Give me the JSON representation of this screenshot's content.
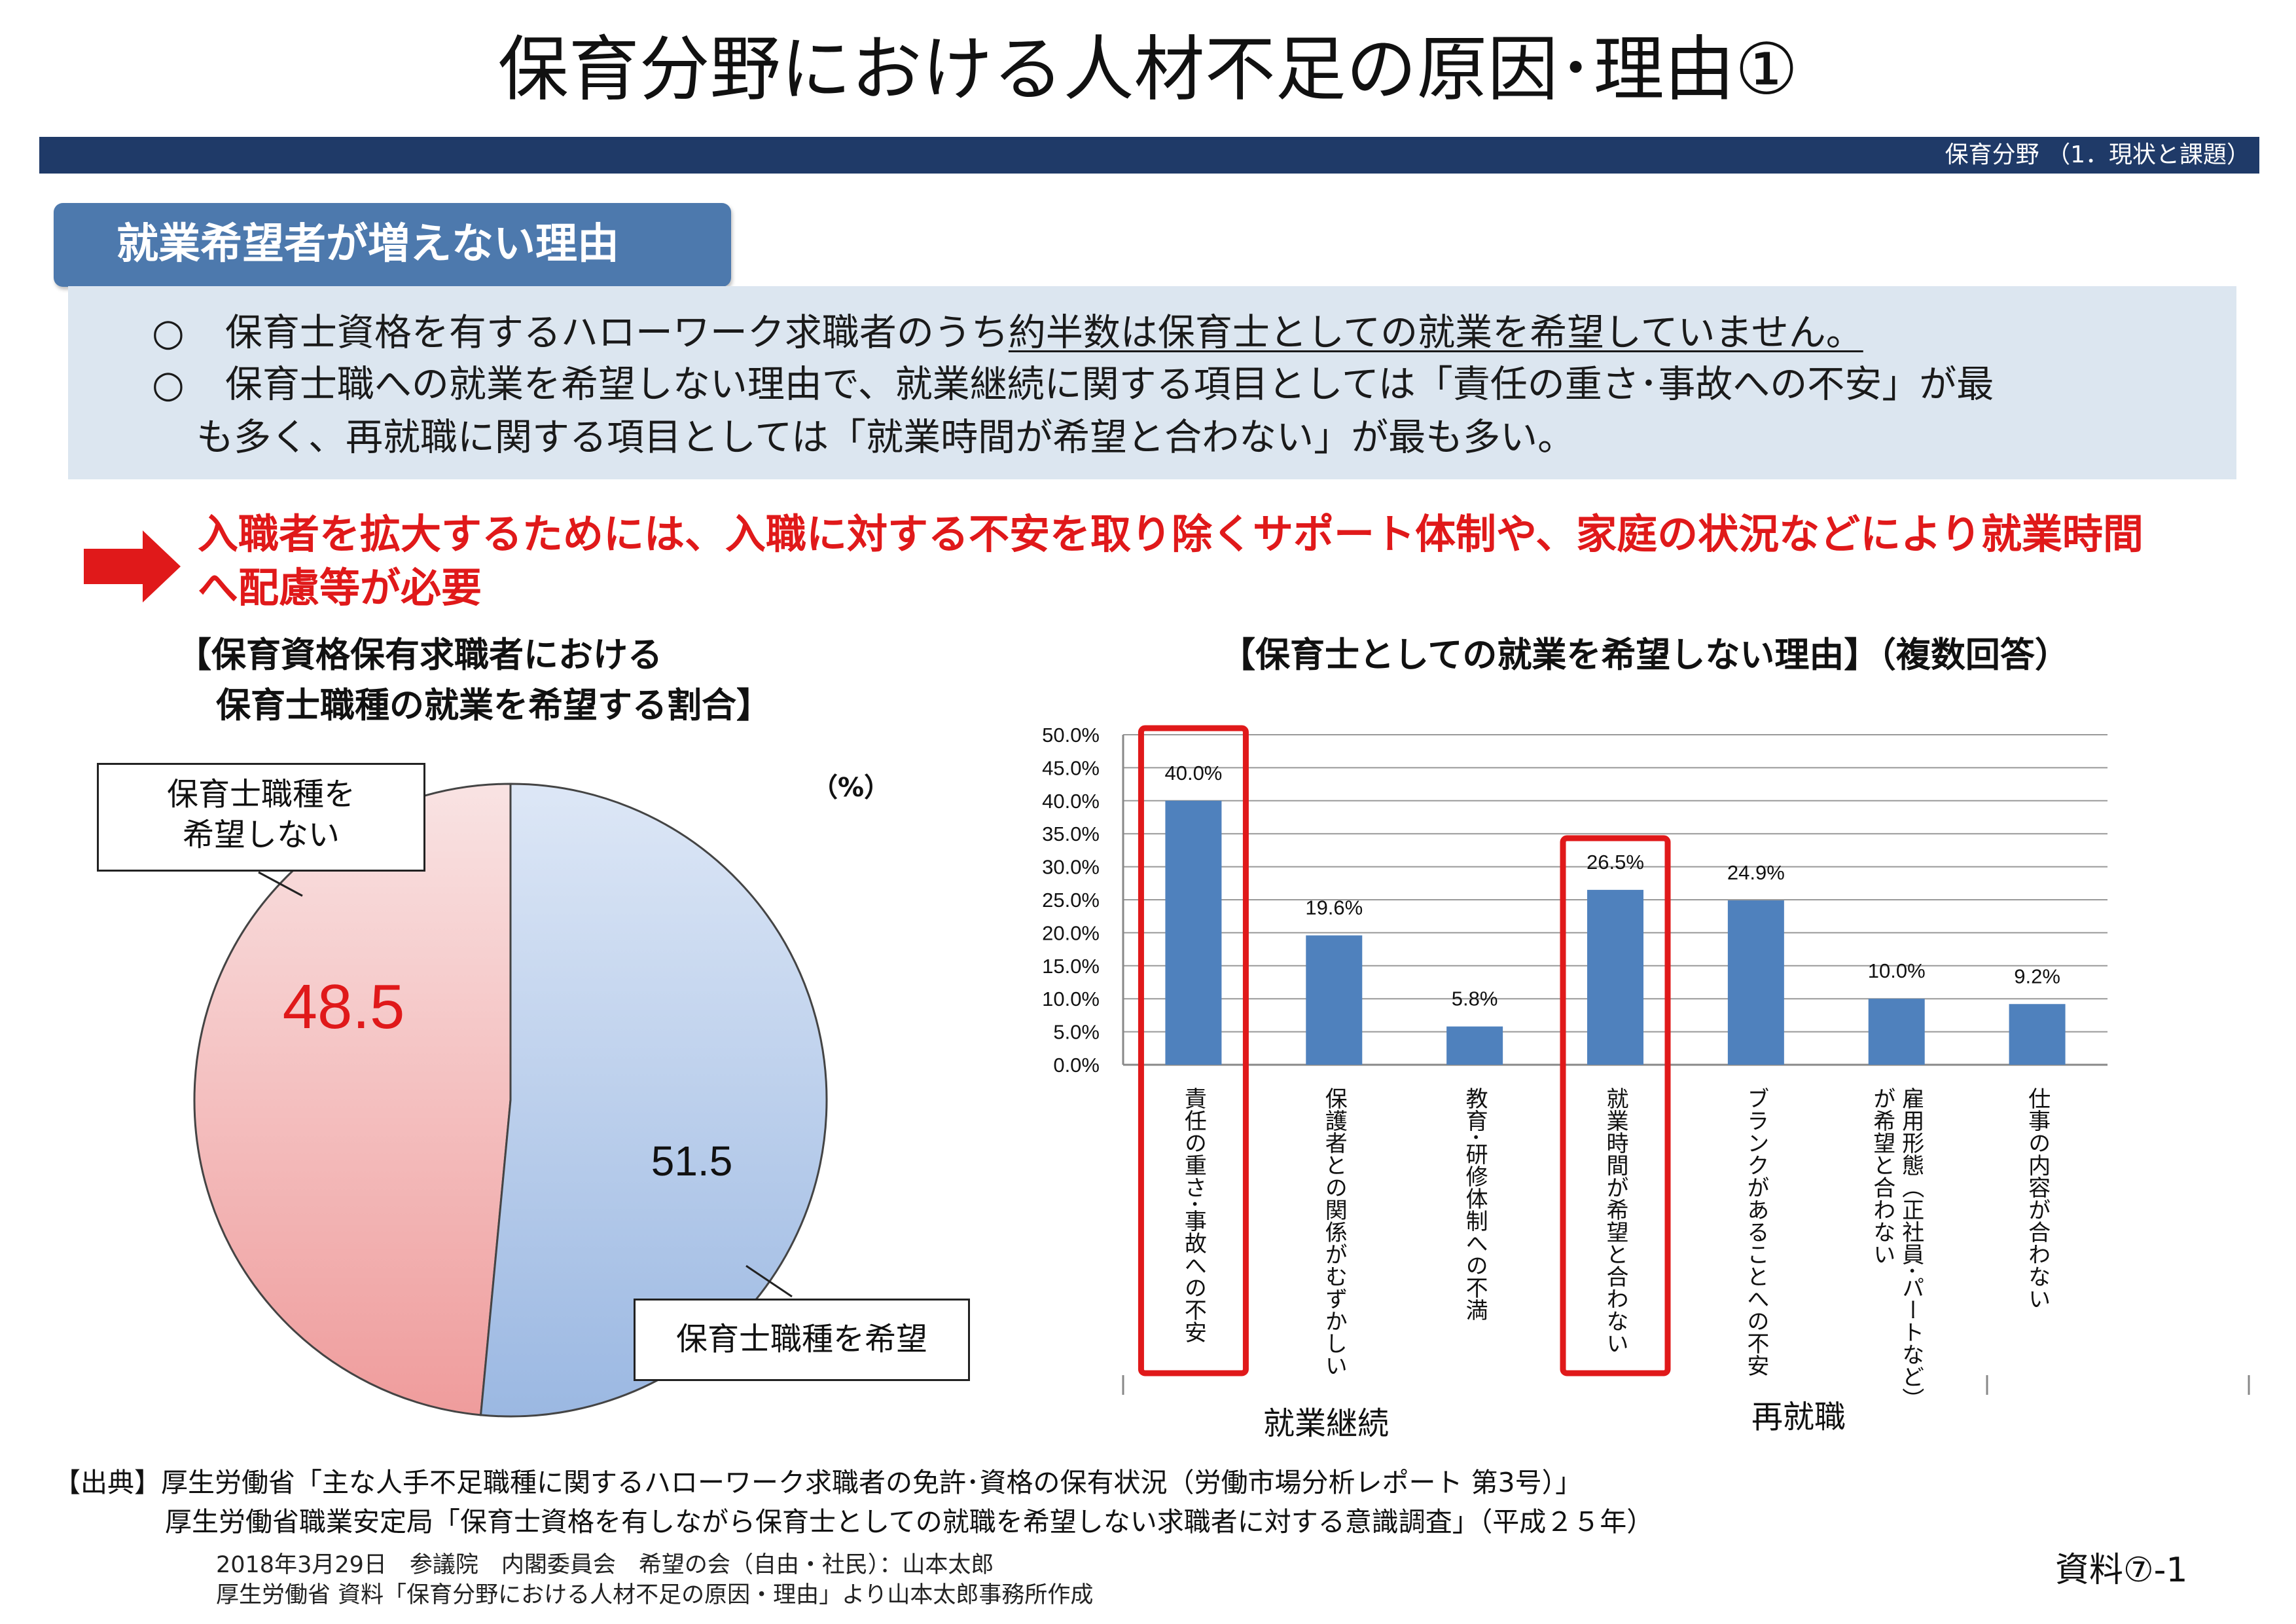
{
  "title": "保育分野における人材不足の原因･理由①",
  "band_subtitle": "保育分野 （1．現状と課題）",
  "section_heading": "就業希望者が増えない理由",
  "summary": {
    "bullet": "○",
    "line1_a": "保育士資格を有するハローワーク求職者のうち",
    "line1_b": "約半数は保育士としての就業を希望していません。",
    "line2": "保育士職への就業を希望しない理由で、就業継続に関する項目としては「責任の重さ･事故への不安」が最",
    "line3": "も多く、再就職に関する項目としては「就業時間が希望と合わない」が最も多い。"
  },
  "callout": {
    "line1": "入職者を拡大するためには、入職に対する不安を取り除くサポート体制や、家庭の状況などにより就業時間",
    "line2": "へ配慮等が必要",
    "arrow_color": "#e0191a"
  },
  "pie_chart": {
    "title_line1": "【保育資格保有求職者における",
    "title_line2": "保育士職種の就業を希望する割合】",
    "unit": "（%）",
    "label_not_wish_1": "保育士職種を",
    "label_not_wish_2": "希望しない",
    "label_wish": "保育士職種を希望"
  },
  "bar_chart": {
    "title": "【保育士としての就業を希望しない理由】（複数回答）",
    "group1_label": "就業継続",
    "group2_label": "再就職",
    "highlight_color": "#e0191a",
    "bar_color": "#4f81bd"
  },
  "chart_data": [
    {
      "type": "pie",
      "categories": [
        "保育士職種を希望しない",
        "保育士職種を希望"
      ],
      "values": [
        48.5,
        51.5
      ],
      "colors": [
        "#f2b3b3",
        "#b3c8e8"
      ]
    },
    {
      "type": "bar",
      "categories": [
        "責任の重さ･事故への不安",
        "保護者との関係がむずかしい",
        "教育･研修体制への不満",
        "就業時間が希望と合わない",
        "ブランクがあることへの不安",
        "雇用形態（正社員･パートなど）が希望と合わない",
        "仕事の内容が合わない"
      ],
      "values": [
        40.0,
        19.6,
        5.8,
        26.5,
        24.9,
        10.0,
        9.2
      ],
      "data_labels": [
        "40.0%",
        "19.6%",
        "5.8%",
        "26.5%",
        "24.9%",
        "10.0%",
        "9.2%"
      ],
      "yticks": [
        "0.0%",
        "5.0%",
        "10.0%",
        "15.0%",
        "20.0%",
        "25.0%",
        "30.0%",
        "35.0%",
        "40.0%",
        "45.0%",
        "50.0%"
      ],
      "ylim": [
        0,
        50
      ],
      "grid": true,
      "highlighted": [
        0,
        3
      ]
    }
  ],
  "source": {
    "line1": "【出典】厚生労働省「主な人手不足職種に関するハローワーク求職者の免許･資格の保有状況（労働市場分析レポート 第3号）」",
    "line2": "厚生労働省職業安定局「保育士資格を有しながら保育士としての就職を希望しない求職者に対する意識調査」（平成２５年）"
  },
  "footer": {
    "line1": "2018年3月29日　参議院　内閣委員会　希望の会（自由・社民）：山本太郎",
    "line2": "厚生労働省 資料「保育分野における人材不足の原因・理由」より山本太郎事務所作成",
    "doc_id": "資料⑦-1"
  }
}
